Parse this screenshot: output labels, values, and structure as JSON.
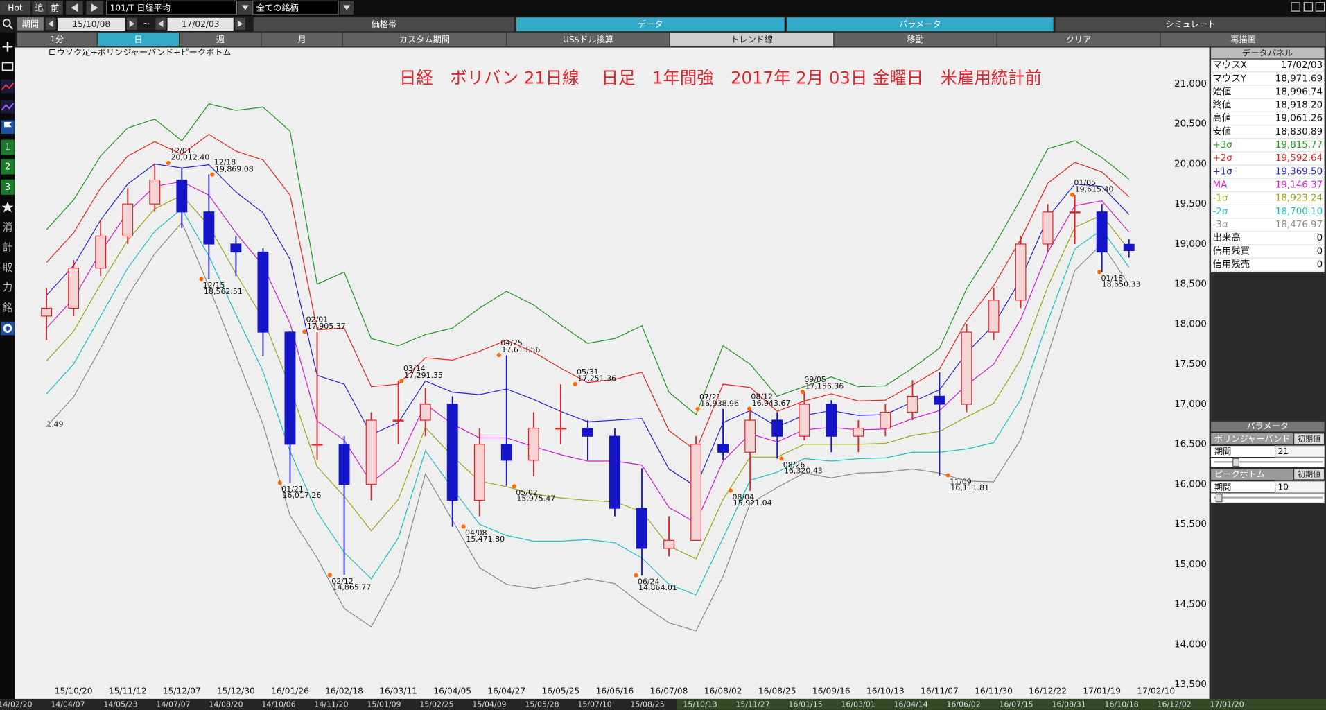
{
  "toolbar": {
    "buttons": [
      "Hot",
      "追",
      "前"
    ],
    "symbol": "101/T 日経平均",
    "universe": "全ての銘柄",
    "period_label": "期間",
    "start": "15/10/08",
    "separator": "~",
    "end": "17/02/03",
    "tabs": [
      "価格帯",
      "データ",
      "パラメータ",
      "シミュレート"
    ],
    "timeframes": [
      "1分",
      "日",
      "週",
      "月",
      "カスタム期間",
      "US$ドル換算",
      "トレンド線",
      "移動",
      "クリア",
      "再描画"
    ]
  },
  "sidebar": [
    "1",
    "2",
    "3",
    "消",
    "計",
    "取",
    "力",
    "銘"
  ],
  "chart_data": {
    "type": "candlestick",
    "title": "日経　ボリバン 21日線　 日足　1年間強　2017年 2月 03日 金曜日　米雇用統計前",
    "subtitle": "ロウソク足+ボリンジャーバンド+ピークボトム",
    "edge_label": "1.49",
    "categories": [
      null,
      "15/10/20",
      null,
      "15/11/12",
      null,
      "15/12/07",
      null,
      "15/12/30",
      null,
      "16/01/26",
      null,
      "16/02/18",
      null,
      "16/03/11",
      null,
      "16/04/05",
      null,
      "16/04/27",
      null,
      "16/05/25",
      null,
      "16/06/16",
      null,
      "16/07/08",
      null,
      "16/08/02",
      null,
      "16/08/25",
      null,
      "16/09/16",
      null,
      "16/10/13",
      null,
      "16/11/07",
      null,
      "16/11/30",
      null,
      "16/12/22",
      null,
      "17/01/19",
      null,
      "17/02/10"
    ],
    "ohlc": [
      [
        18100,
        18450,
        17800,
        18200
      ],
      [
        18200,
        18800,
        18100,
        18700
      ],
      [
        18700,
        19300,
        18600,
        19100
      ],
      [
        19100,
        19700,
        19000,
        19500
      ],
      [
        19500,
        20010,
        19400,
        19800
      ],
      [
        19800,
        19950,
        19200,
        19400
      ],
      [
        19400,
        19870,
        18560,
        19000
      ],
      [
        19000,
        19100,
        18600,
        18900
      ],
      [
        18900,
        18950,
        17600,
        17900
      ],
      [
        17900,
        17910,
        16020,
        16500
      ],
      [
        16500,
        17900,
        16300,
        16500
      ],
      [
        16500,
        16600,
        14870,
        16000
      ],
      [
        16000,
        16900,
        15800,
        16800
      ],
      [
        16800,
        17290,
        16500,
        16800
      ],
      [
        16800,
        17200,
        16600,
        17000
      ],
      [
        17000,
        17100,
        15470,
        15800
      ],
      [
        15800,
        16700,
        15600,
        16500
      ],
      [
        16500,
        17610,
        15980,
        16300
      ],
      [
        16300,
        16900,
        16100,
        16700
      ],
      [
        16700,
        17250,
        16500,
        16700
      ],
      [
        16700,
        16800,
        16300,
        16600
      ],
      [
        16600,
        16700,
        15600,
        15700
      ],
      [
        15700,
        16200,
        14860,
        15200
      ],
      [
        15200,
        15600,
        15100,
        15300
      ],
      [
        15300,
        16600,
        15300,
        16500
      ],
      [
        16500,
        16940,
        16300,
        16400
      ],
      [
        16400,
        16940,
        15920,
        16800
      ],
      [
        16800,
        16900,
        16320,
        16600
      ],
      [
        16600,
        17160,
        16550,
        17000
      ],
      [
        17000,
        17050,
        16400,
        16600
      ],
      [
        16600,
        16800,
        16400,
        16700
      ],
      [
        16700,
        17000,
        16600,
        16900
      ],
      [
        16900,
        17300,
        16800,
        17100
      ],
      [
        17100,
        17400,
        16110,
        17000
      ],
      [
        17000,
        18000,
        16900,
        17900
      ],
      [
        17900,
        18450,
        17800,
        18300
      ],
      [
        18300,
        19100,
        18200,
        19000
      ],
      [
        19000,
        19500,
        18900,
        19400
      ],
      [
        19400,
        19615,
        19000,
        19400
      ],
      [
        19400,
        19500,
        18650,
        18900
      ],
      [
        18996.74,
        19061.26,
        18830.89,
        18918.2
      ],
      null
    ],
    "up_color": "#e0242a",
    "down_color": "#1414c8",
    "series": [
      {
        "name": "+3σ",
        "color": "#1f9a1f",
        "values": [
          19180,
          19550,
          20100,
          20450,
          20560,
          20290,
          20750,
          20670,
          20710,
          20410,
          18500,
          18650,
          17820,
          17730,
          17870,
          17950,
          18200,
          18410,
          18240,
          17990,
          17760,
          17820,
          17980,
          17150,
          16870,
          17730,
          17500,
          17100,
          17220,
          17340,
          17220,
          17230,
          17450,
          17700,
          18440,
          18970,
          19560,
          20190,
          20290,
          20080,
          19810,
          null
        ]
      },
      {
        "name": "+2σ",
        "color": "#e8271f",
        "values": [
          18770,
          19140,
          19700,
          20100,
          20280,
          20120,
          20370,
          20160,
          20050,
          19610,
          17930,
          17950,
          17220,
          17250,
          17580,
          17550,
          17660,
          17800,
          17650,
          17450,
          17270,
          17310,
          17400,
          16670,
          16420,
          17250,
          17210,
          16910,
          17040,
          17130,
          17040,
          17050,
          17240,
          17440,
          18040,
          18480,
          19060,
          19760,
          20020,
          19900,
          19590,
          null
        ]
      },
      {
        "name": "+1σ",
        "color": "#2424d8",
        "values": [
          18360,
          18730,
          19300,
          19750,
          20000,
          19950,
          19990,
          19650,
          19390,
          18810,
          17360,
          17250,
          16620,
          16770,
          17290,
          17150,
          17120,
          17190,
          17060,
          16910,
          16780,
          16800,
          16820,
          16190,
          15970,
          16770,
          16920,
          16720,
          16860,
          16920,
          16860,
          16870,
          17030,
          17180,
          17640,
          17990,
          18560,
          19330,
          19750,
          19720,
          19370,
          null
        ]
      },
      {
        "name": "MA",
        "color": "#d21fd2",
        "values": [
          17950,
          18320,
          18900,
          19400,
          19720,
          19780,
          19610,
          19140,
          18730,
          18010,
          16790,
          16550,
          16020,
          16290,
          17000,
          16750,
          16580,
          16580,
          16470,
          16370,
          16290,
          16290,
          16240,
          15710,
          15520,
          16290,
          16630,
          16530,
          16680,
          16710,
          16680,
          16690,
          16820,
          16920,
          17240,
          17500,
          18060,
          18900,
          19480,
          19540,
          19150,
          null
        ]
      },
      {
        "name": "-1σ",
        "color": "#a3a31a",
        "values": [
          17540,
          17910,
          18500,
          19050,
          19440,
          19610,
          19230,
          18630,
          18070,
          17210,
          16220,
          15850,
          15420,
          15810,
          16710,
          16350,
          16040,
          15970,
          15880,
          15830,
          15800,
          15780,
          15660,
          15230,
          15070,
          15810,
          16340,
          16340,
          16500,
          16500,
          16500,
          16510,
          16610,
          16660,
          16840,
          17010,
          17560,
          18470,
          19210,
          19360,
          18930,
          null
        ]
      },
      {
        "name": "-2σ",
        "color": "#1fc0c8",
        "values": [
          17130,
          17500,
          18100,
          18700,
          19160,
          19440,
          18850,
          18120,
          17410,
          16410,
          15650,
          15150,
          14820,
          15330,
          16420,
          15950,
          15500,
          15360,
          15290,
          15290,
          15310,
          15270,
          15080,
          14750,
          14620,
          15330,
          16050,
          16150,
          16320,
          16290,
          16320,
          16330,
          16400,
          16400,
          16440,
          16520,
          17060,
          18040,
          18940,
          19180,
          18710,
          null
        ]
      },
      {
        "name": "-3σ",
        "color": "#8a8a8a",
        "values": [
          16720,
          17090,
          17700,
          18350,
          18880,
          19270,
          18470,
          17610,
          16750,
          15610,
          15080,
          14450,
          14220,
          14850,
          16130,
          15550,
          14960,
          14750,
          14700,
          14750,
          14820,
          14760,
          14500,
          14270,
          14170,
          14850,
          15760,
          15960,
          16140,
          16080,
          16140,
          16150,
          16190,
          16140,
          16040,
          16030,
          16560,
          17610,
          18670,
          19000,
          18490,
          null
        ]
      }
    ],
    "annotations": [
      {
        "date": "12/01",
        "value": 20012.4,
        "label": "20,012.40"
      },
      {
        "date": "12/15",
        "value": 18562.51,
        "label": "18,562.51"
      },
      {
        "date": "12/18",
        "value": 19869.08,
        "label": "19,869.08"
      },
      {
        "date": "01/21",
        "value": 16017.26,
        "label": "16,017.26"
      },
      {
        "date": "02/01",
        "value": 17905.37,
        "label": "17,905.37"
      },
      {
        "date": "02/12",
        "value": 14865.77,
        "label": "14,865.77"
      },
      {
        "date": "03/14",
        "value": 17291.35,
        "label": "17,291.35"
      },
      {
        "date": "04/08",
        "value": 15471.8,
        "label": "15,471.80"
      },
      {
        "date": "04/25",
        "value": 17613.56,
        "label": "17,613.56"
      },
      {
        "date": "05/02",
        "value": 15975.47,
        "label": "15,975.47"
      },
      {
        "date": "05/31",
        "value": 17251.36,
        "label": "17,251.36"
      },
      {
        "date": "06/24",
        "value": 14864.01,
        "label": "14,864.01"
      },
      {
        "date": "07/21",
        "value": 16938.96,
        "label": "16,938.96"
      },
      {
        "date": "08/04",
        "value": 15921.04,
        "label": "15,921.04"
      },
      {
        "date": "08/12",
        "value": 16943.67,
        "label": "16,943.67"
      },
      {
        "date": "08/26",
        "value": 16320.43,
        "label": "16,320.43"
      },
      {
        "date": "09/05",
        "value": 17156.36,
        "label": "17,156.36"
      },
      {
        "date": "11/09",
        "value": 16111.81,
        "label": "16,111.81"
      },
      {
        "date": "01/05",
        "value": 19615.4,
        "label": "19,615.40"
      },
      {
        "date": "01/18",
        "value": 18650.33,
        "label": "18,650.33"
      }
    ],
    "annotation_color": "#ff6a00",
    "ylim": [
      13500,
      21000
    ],
    "yticks": [
      {
        "value": 13500,
        "label": "13,500"
      },
      {
        "value": 14000,
        "label": "14,000"
      },
      {
        "value": 14500,
        "label": "14,500"
      },
      {
        "value": 15000,
        "label": "15,000"
      },
      {
        "value": 15500,
        "label": "15,500"
      },
      {
        "value": 16000,
        "label": "16,000"
      },
      {
        "value": 16500,
        "label": "16,500"
      },
      {
        "value": 17000,
        "label": "17,000"
      },
      {
        "value": 17500,
        "label": "17,500"
      },
      {
        "value": 18000,
        "label": "18,000"
      },
      {
        "value": 18500,
        "label": "18,500"
      },
      {
        "value": 19000,
        "label": "19,000"
      },
      {
        "value": 19500,
        "label": "19,500"
      },
      {
        "value": 20000,
        "label": "20,000"
      },
      {
        "value": 20500,
        "label": "20,500"
      },
      {
        "value": 21000,
        "label": "21,000"
      }
    ],
    "grid": false
  },
  "data_panel": {
    "title": "データパネル",
    "rows": [
      [
        "マウスX",
        "17/02/03"
      ],
      [
        "マウスY",
        "18,971.69"
      ],
      [
        "始値",
        "18,996.74"
      ],
      [
        "終値",
        "18,918.20"
      ],
      [
        "高値",
        "19,061.26"
      ],
      [
        "安値",
        "18,830.89"
      ]
    ],
    "band_values": [
      "19,815.77",
      "19,592.64",
      "19,369.50",
      "19,146.37",
      "18,923.24",
      "18,700.10",
      "18,476.97"
    ],
    "volume_rows": [
      [
        "出来高",
        "0"
      ],
      [
        "信用残買",
        "0"
      ],
      [
        "信用残売",
        "0"
      ]
    ]
  },
  "parameter_panel": {
    "title": "パラメータ",
    "groups": [
      {
        "name": "ボリンジャーバンド",
        "reset": "初期値",
        "field": "期間",
        "value": "21"
      },
      {
        "name": "ピークボトム",
        "reset": "初期値",
        "field": "期間",
        "value": "10"
      }
    ]
  },
  "timeline": [
    "14/02/20",
    "14/04/07",
    "14/05/23",
    "14/07/07",
    "14/08/20",
    "14/10/06",
    "14/11/20",
    "15/01/09",
    "15/02/25",
    "15/04/09",
    "15/05/28",
    "15/07/10",
    "15/08/25",
    "15/10/13",
    "15/11/27",
    "16/01/15",
    "16/03/01",
    "16/04/14",
    "16/06/02",
    "16/07/15",
    "16/08/31",
    "16/10/18",
    "16/12/02",
    "17/01/20"
  ]
}
